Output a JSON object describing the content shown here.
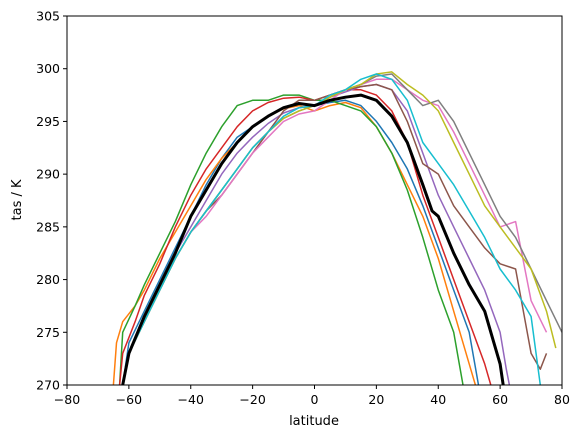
{
  "chart_data": {
    "type": "line",
    "title": "",
    "xlabel": "latitude",
    "ylabel": "tas / K",
    "xlim": [
      -80,
      80
    ],
    "ylim": [
      270,
      305
    ],
    "xticks": [
      -80,
      -60,
      -40,
      -20,
      0,
      20,
      40,
      60,
      80
    ],
    "yticks": [
      270,
      275,
      280,
      285,
      290,
      295,
      300,
      305
    ],
    "grid": false,
    "legend": "none",
    "series": [
      {
        "color": "#1f77b4",
        "width": 1.5,
        "points": [
          [
            -62,
            270
          ],
          [
            -60,
            274
          ],
          [
            -55,
            277
          ],
          [
            -50,
            280
          ],
          [
            -45,
            283
          ],
          [
            -40,
            286
          ],
          [
            -35,
            289
          ],
          [
            -30,
            291.5
          ],
          [
            -25,
            293.5
          ],
          [
            -20,
            294.5
          ],
          [
            -15,
            295.5
          ],
          [
            -10,
            296.3
          ],
          [
            -5,
            296.7
          ],
          [
            0,
            296.5
          ],
          [
            5,
            296.8
          ],
          [
            10,
            297
          ],
          [
            15,
            296.5
          ],
          [
            20,
            295
          ],
          [
            25,
            293
          ],
          [
            30,
            290.5
          ],
          [
            35,
            287
          ],
          [
            40,
            283
          ],
          [
            45,
            279
          ],
          [
            50,
            275
          ],
          [
            53,
            270
          ]
        ]
      },
      {
        "color": "#ff7f0e",
        "width": 1.5,
        "points": [
          [
            -65,
            270
          ],
          [
            -64,
            274
          ],
          [
            -62,
            276
          ],
          [
            -58,
            277.5
          ],
          [
            -55,
            279
          ],
          [
            -50,
            282
          ],
          [
            -45,
            284.5
          ],
          [
            -40,
            287
          ],
          [
            -35,
            289.5
          ],
          [
            -30,
            291.5
          ],
          [
            -25,
            293
          ],
          [
            -20,
            294.5
          ],
          [
            -15,
            295.5
          ],
          [
            -10,
            296.2
          ],
          [
            -5,
            296.5
          ],
          [
            0,
            296
          ],
          [
            5,
            296.5
          ],
          [
            10,
            296.8
          ],
          [
            15,
            296.3
          ],
          [
            20,
            294.5
          ],
          [
            25,
            292
          ],
          [
            30,
            289
          ],
          [
            35,
            286
          ],
          [
            40,
            282
          ],
          [
            45,
            277
          ],
          [
            50,
            272
          ],
          [
            52,
            270
          ]
        ]
      },
      {
        "color": "#2ca02c",
        "width": 1.5,
        "points": [
          [
            -63,
            270
          ],
          [
            -62,
            275
          ],
          [
            -58,
            277.5
          ],
          [
            -55,
            279.5
          ],
          [
            -50,
            282.5
          ],
          [
            -45,
            285.5
          ],
          [
            -40,
            289
          ],
          [
            -35,
            292
          ],
          [
            -30,
            294.5
          ],
          [
            -25,
            296.5
          ],
          [
            -20,
            297
          ],
          [
            -15,
            297
          ],
          [
            -10,
            297.5
          ],
          [
            -5,
            297.5
          ],
          [
            0,
            297
          ],
          [
            5,
            297
          ],
          [
            10,
            296.5
          ],
          [
            15,
            296
          ],
          [
            20,
            294.5
          ],
          [
            25,
            292
          ],
          [
            30,
            288.5
          ],
          [
            35,
            284
          ],
          [
            40,
            279
          ],
          [
            45,
            275
          ],
          [
            48,
            270
          ]
        ]
      },
      {
        "color": "#d62728",
        "width": 1.5,
        "points": [
          [
            -63,
            270
          ],
          [
            -62,
            273
          ],
          [
            -58,
            276
          ],
          [
            -55,
            278.5
          ],
          [
            -50,
            281.5
          ],
          [
            -45,
            285
          ],
          [
            -40,
            288
          ],
          [
            -35,
            290.5
          ],
          [
            -30,
            292.5
          ],
          [
            -25,
            294.5
          ],
          [
            -20,
            296
          ],
          [
            -15,
            296.8
          ],
          [
            -10,
            297.2
          ],
          [
            -5,
            297.3
          ],
          [
            0,
            297
          ],
          [
            5,
            297.5
          ],
          [
            10,
            298
          ],
          [
            15,
            298
          ],
          [
            20,
            297.5
          ],
          [
            25,
            296
          ],
          [
            30,
            293
          ],
          [
            35,
            288
          ],
          [
            40,
            284
          ],
          [
            45,
            280
          ],
          [
            50,
            276
          ],
          [
            55,
            272
          ],
          [
            57,
            270
          ]
        ]
      },
      {
        "color": "#9467bd",
        "width": 1.5,
        "points": [
          [
            -62,
            270
          ],
          [
            -60,
            273
          ],
          [
            -55,
            276.5
          ],
          [
            -50,
            279.5
          ],
          [
            -45,
            282.5
          ],
          [
            -40,
            285
          ],
          [
            -35,
            287.5
          ],
          [
            -30,
            290
          ],
          [
            -25,
            292
          ],
          [
            -20,
            293.5
          ],
          [
            -15,
            294.8
          ],
          [
            -10,
            295.8
          ],
          [
            -5,
            296.3
          ],
          [
            0,
            296.5
          ],
          [
            5,
            297.3
          ],
          [
            10,
            297.8
          ],
          [
            15,
            298.3
          ],
          [
            20,
            298.5
          ],
          [
            25,
            298
          ],
          [
            30,
            296
          ],
          [
            35,
            292
          ],
          [
            40,
            288
          ],
          [
            45,
            285
          ],
          [
            50,
            282
          ],
          [
            55,
            279
          ],
          [
            60,
            275
          ],
          [
            62,
            271.5
          ],
          [
            63,
            270
          ]
        ]
      },
      {
        "color": "#8c564b",
        "width": 1.5,
        "points": [
          [
            -62,
            270
          ],
          [
            -60,
            273
          ],
          [
            -55,
            276
          ],
          [
            -50,
            279
          ],
          [
            -45,
            282
          ],
          [
            -40,
            284.5
          ],
          [
            -35,
            286.5
          ],
          [
            -30,
            288
          ],
          [
            -25,
            290
          ],
          [
            -20,
            292
          ],
          [
            -15,
            294
          ],
          [
            -10,
            296
          ],
          [
            -5,
            297
          ],
          [
            0,
            297
          ],
          [
            5,
            297.5
          ],
          [
            10,
            298
          ],
          [
            15,
            298.3
          ],
          [
            20,
            298.5
          ],
          [
            25,
            298
          ],
          [
            30,
            295
          ],
          [
            35,
            291
          ],
          [
            40,
            290
          ],
          [
            45,
            287
          ],
          [
            50,
            285
          ],
          [
            55,
            283
          ],
          [
            60,
            281.5
          ],
          [
            65,
            281
          ],
          [
            70,
            273
          ],
          [
            73,
            271.5
          ],
          [
            75,
            273
          ]
        ]
      },
      {
        "color": "#e377c2",
        "width": 1.5,
        "points": [
          [
            -62,
            270
          ],
          [
            -60,
            273
          ],
          [
            -55,
            276
          ],
          [
            -50,
            279
          ],
          [
            -45,
            282
          ],
          [
            -40,
            284.5
          ],
          [
            -35,
            286
          ],
          [
            -30,
            288
          ],
          [
            -25,
            290
          ],
          [
            -20,
            292
          ],
          [
            -15,
            293.5
          ],
          [
            -10,
            295
          ],
          [
            -5,
            295.7
          ],
          [
            0,
            296
          ],
          [
            5,
            297
          ],
          [
            10,
            298
          ],
          [
            15,
            298.5
          ],
          [
            20,
            299
          ],
          [
            25,
            299
          ],
          [
            30,
            298
          ],
          [
            35,
            297
          ],
          [
            40,
            296.5
          ],
          [
            45,
            294
          ],
          [
            50,
            291
          ],
          [
            55,
            288
          ],
          [
            60,
            285
          ],
          [
            65,
            285.5
          ],
          [
            70,
            278
          ],
          [
            75,
            275
          ]
        ]
      },
      {
        "color": "#7f7f7f",
        "width": 1.5,
        "points": [
          [
            -62,
            270
          ],
          [
            -60,
            273
          ],
          [
            -55,
            276
          ],
          [
            -50,
            279
          ],
          [
            -45,
            282
          ],
          [
            -40,
            284.5
          ],
          [
            -35,
            286.5
          ],
          [
            -30,
            288.5
          ],
          [
            -25,
            290.5
          ],
          [
            -20,
            292.5
          ],
          [
            -15,
            294
          ],
          [
            -10,
            295.3
          ],
          [
            -5,
            296
          ],
          [
            0,
            296.5
          ],
          [
            5,
            297.3
          ],
          [
            10,
            298
          ],
          [
            15,
            298.5
          ],
          [
            20,
            299.3
          ],
          [
            25,
            299.5
          ],
          [
            30,
            298
          ],
          [
            35,
            296.5
          ],
          [
            40,
            297
          ],
          [
            45,
            295
          ],
          [
            50,
            292
          ],
          [
            55,
            289
          ],
          [
            60,
            286
          ],
          [
            65,
            284
          ],
          [
            70,
            281
          ],
          [
            75,
            278
          ],
          [
            80,
            275
          ]
        ]
      },
      {
        "color": "#bcbd22",
        "width": 1.5,
        "points": [
          [
            -62,
            270
          ],
          [
            -60,
            273
          ],
          [
            -55,
            276
          ],
          [
            -50,
            279
          ],
          [
            -45,
            282
          ],
          [
            -40,
            284.5
          ],
          [
            -35,
            286.5
          ],
          [
            -30,
            288.5
          ],
          [
            -25,
            290.5
          ],
          [
            -20,
            292.5
          ],
          [
            -15,
            294
          ],
          [
            -10,
            295.3
          ],
          [
            -5,
            296
          ],
          [
            0,
            296.5
          ],
          [
            5,
            297.3
          ],
          [
            10,
            298
          ],
          [
            15,
            298.5
          ],
          [
            20,
            299.5
          ],
          [
            25,
            299.7
          ],
          [
            30,
            298.5
          ],
          [
            35,
            297.5
          ],
          [
            40,
            296
          ],
          [
            45,
            293
          ],
          [
            50,
            290
          ],
          [
            55,
            287
          ],
          [
            60,
            285
          ],
          [
            65,
            283
          ],
          [
            70,
            281
          ],
          [
            75,
            277
          ],
          [
            78,
            273.5
          ]
        ]
      },
      {
        "color": "#17becf",
        "width": 1.5,
        "points": [
          [
            -62,
            270
          ],
          [
            -60,
            273
          ],
          [
            -55,
            276
          ],
          [
            -50,
            279
          ],
          [
            -45,
            282
          ],
          [
            -40,
            284.5
          ],
          [
            -35,
            286.5
          ],
          [
            -30,
            288.5
          ],
          [
            -25,
            290.5
          ],
          [
            -20,
            292.5
          ],
          [
            -15,
            294
          ],
          [
            -10,
            295.5
          ],
          [
            -5,
            296.3
          ],
          [
            0,
            296.5
          ],
          [
            5,
            297.5
          ],
          [
            10,
            298
          ],
          [
            15,
            299
          ],
          [
            20,
            299.5
          ],
          [
            25,
            299
          ],
          [
            30,
            297
          ],
          [
            35,
            293
          ],
          [
            40,
            291
          ],
          [
            45,
            289
          ],
          [
            50,
            286.5
          ],
          [
            55,
            284
          ],
          [
            60,
            281
          ],
          [
            65,
            279
          ],
          [
            70,
            276.5
          ],
          [
            73,
            270
          ]
        ]
      },
      {
        "color": "#000000",
        "width": 3,
        "points": [
          [
            -62,
            270
          ],
          [
            -60,
            273
          ],
          [
            -55,
            276.5
          ],
          [
            -50,
            279.5
          ],
          [
            -45,
            282.5
          ],
          [
            -40,
            286
          ],
          [
            -35,
            288.5
          ],
          [
            -30,
            291
          ],
          [
            -25,
            293
          ],
          [
            -20,
            294.5
          ],
          [
            -15,
            295.5
          ],
          [
            -10,
            296.3
          ],
          [
            -5,
            296.7
          ],
          [
            0,
            296.5
          ],
          [
            5,
            297
          ],
          [
            10,
            297.3
          ],
          [
            15,
            297.5
          ],
          [
            20,
            297
          ],
          [
            25,
            295.5
          ],
          [
            30,
            293
          ],
          [
            35,
            289
          ],
          [
            38,
            286.5
          ],
          [
            40,
            286
          ],
          [
            45,
            282.5
          ],
          [
            50,
            279.5
          ],
          [
            55,
            277
          ],
          [
            58,
            274
          ],
          [
            60,
            272
          ],
          [
            61,
            270
          ]
        ]
      }
    ]
  }
}
